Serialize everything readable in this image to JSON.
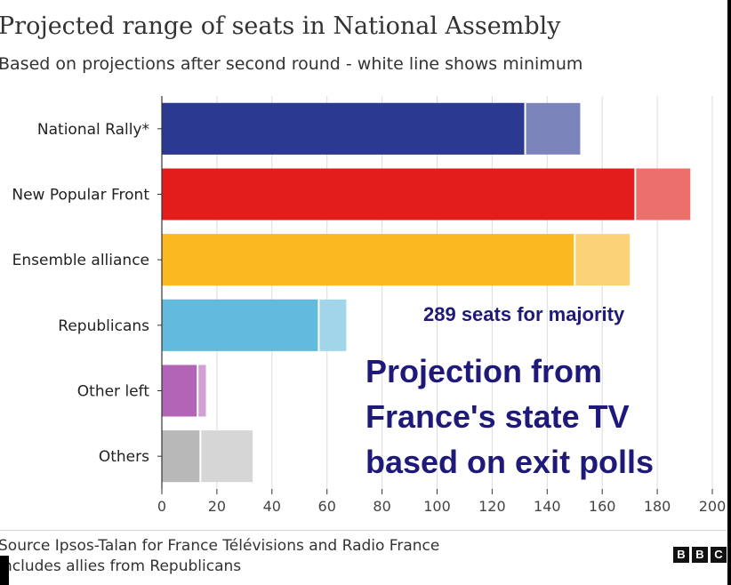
{
  "chart_data": {
    "type": "bar",
    "orientation": "horizontal",
    "title": "Projected range of seats in National Assembly",
    "subtitle": "Based on projections after second round - white line shows minimum",
    "categories": [
      "National Rally*",
      "New Popular Front",
      "Ensemble alliance",
      "Republicans",
      "Other left",
      "Others"
    ],
    "series": [
      {
        "name": "minimum",
        "values": [
          132,
          172,
          150,
          57,
          13,
          14
        ]
      },
      {
        "name": "maximum",
        "values": [
          152,
          192,
          170,
          67,
          16,
          33
        ]
      }
    ],
    "xlim": [
      0,
      200
    ],
    "xticks": [
      0,
      20,
      40,
      60,
      80,
      100,
      120,
      140,
      160,
      180,
      200
    ],
    "grid": true,
    "colors": {
      "dark": [
        "#2b3990",
        "#e31d1b",
        "#fbb820",
        "#62bbdd",
        "#b265b7",
        "#b8b8b8"
      ],
      "light": [
        "#7c85bb",
        "#ec6f6b",
        "#fcd277",
        "#a0d5ea",
        "#d1a0d4",
        "#d6d6d6"
      ]
    }
  },
  "annotations": {
    "majority_label": "289 seats for majority",
    "overlay_lines": [
      "Projection from",
      "France's state TV",
      "based on exit polls"
    ]
  },
  "footer": {
    "source_lines": [
      "Source Ipsos-Talan for France Télévisions and Radio France",
      "Includes allies from Republicans"
    ],
    "logo_letters": [
      "B",
      "B",
      "C"
    ]
  }
}
